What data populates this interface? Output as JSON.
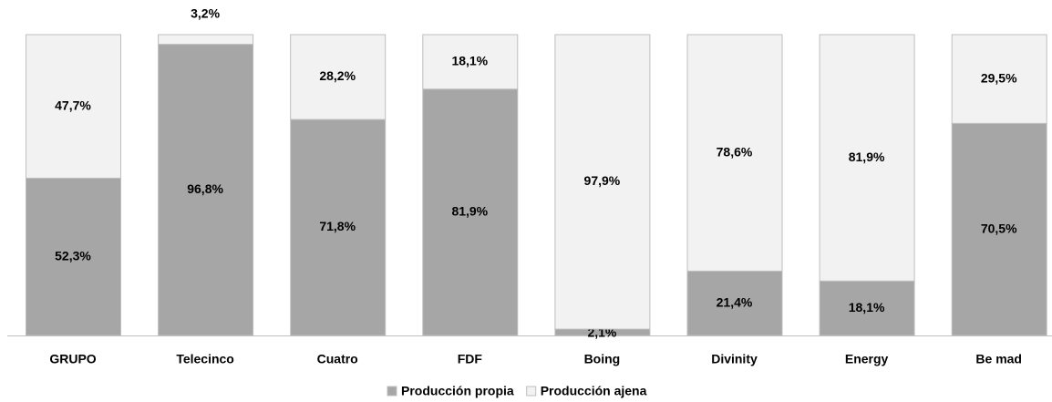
{
  "chart_data": {
    "type": "stacked-bar-100",
    "categories": [
      "GRUPO",
      "Telecinco",
      "Cuatro",
      "FDF",
      "Boing",
      "Divinity",
      "Energy",
      "Be mad"
    ],
    "series": [
      {
        "name": "Producción propia",
        "color": "#a6a6a6",
        "values": [
          52.3,
          96.8,
          71.8,
          81.9,
          2.1,
          21.4,
          18.1,
          70.5
        ],
        "value_labels": [
          "52,3%",
          "96,8%",
          "71,8%",
          "81,9%",
          "2,1%",
          "21,4%",
          "18,1%",
          "70,5%"
        ]
      },
      {
        "name": "Producción ajena",
        "color": "#f2f2f2",
        "values": [
          47.7,
          3.2,
          28.2,
          18.1,
          97.9,
          78.6,
          81.9,
          29.5
        ],
        "value_labels": [
          "47,7%",
          "3,2%",
          "28,2%",
          "18,1%",
          "97,9%",
          "78,6%",
          "81,9%",
          "29,5%"
        ]
      }
    ],
    "legend": "bottom"
  }
}
